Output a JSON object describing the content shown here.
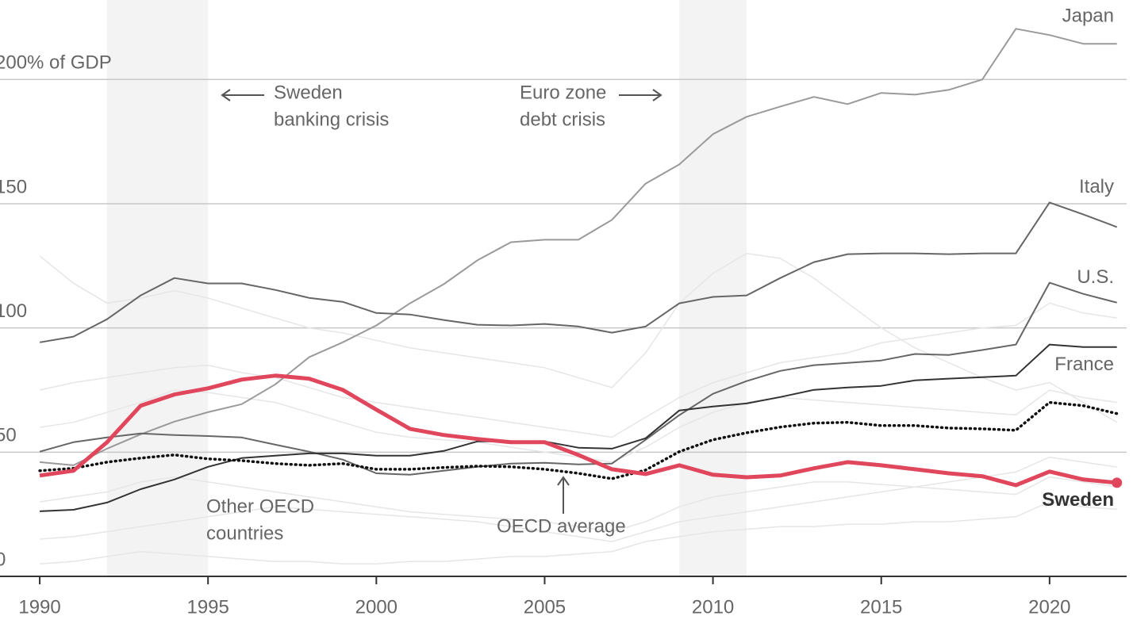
{
  "chart_data": {
    "type": "line",
    "x": [
      1990,
      1991,
      1992,
      1993,
      1994,
      1995,
      1996,
      1997,
      1998,
      1999,
      2000,
      2001,
      2002,
      2003,
      2004,
      2005,
      2006,
      2007,
      2008,
      2009,
      2010,
      2011,
      2012,
      2013,
      2014,
      2015,
      2016,
      2017,
      2018,
      2019,
      2020,
      2021,
      2022
    ],
    "xlim": [
      1988.82,
      2022.29
    ],
    "xticks": [
      1990,
      1995,
      2000,
      2005,
      2010,
      2015,
      2020
    ],
    "ylim": [
      0,
      232
    ],
    "yticks": [
      0,
      50,
      100,
      150,
      {
        "value": 200,
        "label": "200% of GDP"
      }
    ],
    "grid": true,
    "shaded_periods": [
      [
        1992,
        1995
      ],
      [
        2009,
        2011
      ]
    ],
    "annotations": [
      {
        "lines": [
          "Sweden",
          "banking crisis"
        ]
      },
      {
        "lines": [
          "Euro zone",
          "debt crisis"
        ]
      },
      {
        "lines": [
          "Other OECD",
          "countries"
        ]
      }
    ],
    "background_series": [
      {
        "color": "#e6e6e6",
        "values": [
          129,
          118,
          110,
          112,
          115,
          112,
          108,
          104,
          100,
          98,
          95,
          92,
          90,
          88,
          86,
          84,
          80,
          76,
          90,
          110,
          122,
          130,
          128,
          120,
          110,
          100,
          92,
          86,
          80,
          75,
          78,
          70,
          62
        ]
      },
      {
        "color": "#e6e6e6",
        "values": [
          75,
          78,
          80,
          82,
          84,
          85,
          82,
          80,
          76,
          72,
          70,
          68,
          66,
          64,
          62,
          60,
          58,
          56,
          64,
          72,
          78,
          82,
          86,
          88,
          90,
          94,
          96,
          98,
          100,
          101,
          110,
          106,
          104
        ]
      },
      {
        "color": "#e6e6e6",
        "values": [
          30,
          32,
          34,
          38,
          40,
          38,
          36,
          34,
          32,
          30,
          28,
          26,
          25,
          24,
          23,
          22,
          20,
          18,
          22,
          28,
          32,
          34,
          36,
          38,
          38,
          37,
          36,
          35,
          34,
          33,
          40,
          38,
          36
        ]
      },
      {
        "color": "#e6e6e6",
        "values": [
          15,
          16,
          18,
          20,
          22,
          24,
          26,
          28,
          27,
          26,
          25,
          24,
          23,
          22,
          20,
          18,
          16,
          14,
          18,
          22,
          24,
          26,
          28,
          30,
          32,
          34,
          36,
          38,
          40,
          42,
          48,
          46,
          44
        ]
      },
      {
        "color": "#e6e6e6",
        "values": [
          60,
          62,
          66,
          70,
          75,
          74,
          72,
          70,
          66,
          62,
          58,
          56,
          55,
          54,
          52,
          50,
          48,
          46,
          52,
          60,
          66,
          70,
          72,
          71,
          70,
          69,
          68,
          67,
          66,
          65,
          75,
          72,
          70
        ]
      },
      {
        "color": "#e6e6e6",
        "values": [
          5,
          6,
          8,
          10,
          9,
          8,
          7,
          6,
          6,
          5,
          5,
          6,
          6,
          7,
          8,
          8,
          9,
          10,
          14,
          16,
          18,
          19,
          20,
          20,
          21,
          21,
          22,
          22,
          23,
          24,
          30,
          28,
          27
        ]
      }
    ],
    "series": [
      {
        "name": "Japan",
        "color": "#9a9a9a",
        "values": [
          46,
          44.7,
          51.4,
          57.2,
          62.3,
          66.1,
          69.3,
          77.3,
          88.2,
          94.2,
          101,
          109.9,
          117.6,
          127.2,
          134.5,
          135.5,
          135.5,
          143.5,
          158.1,
          165.8,
          178,
          185,
          189.1,
          193,
          190.1,
          194.6,
          193.9,
          195.8,
          200,
          220.4,
          217.9,
          214.4,
          214.4
        ]
      },
      {
        "name": "Italy",
        "color": "#666666",
        "values": [
          94.2,
          96.5,
          103.5,
          113.1,
          120.1,
          117.9,
          117.9,
          115.3,
          112.1,
          110.5,
          106,
          105.4,
          103.2,
          101.3,
          101,
          101.6,
          100.6,
          98.1,
          100.6,
          109.9,
          112.5,
          113.1,
          120.1,
          126.5,
          129.7,
          130,
          130,
          129.7,
          130,
          130,
          150.5,
          145.7,
          140.6
        ]
      },
      {
        "name": "U.S.",
        "color": "#666666",
        "values": [
          50.2,
          54,
          55.9,
          57.5,
          56.9,
          56.5,
          55.9,
          53,
          50.2,
          47,
          41.5,
          40.9,
          42.5,
          44.1,
          45.4,
          45.7,
          45.1,
          45.4,
          55,
          64.9,
          73.5,
          78.6,
          82.7,
          85,
          85.9,
          86.9,
          89.5,
          89.1,
          91.1,
          93.3,
          118.2,
          113.7,
          110.2
        ]
      },
      {
        "name": "France",
        "color": "#333333",
        "values": [
          26.2,
          26.8,
          29.7,
          35.1,
          39,
          44.1,
          47.6,
          48.6,
          49.5,
          49.5,
          48.6,
          48.6,
          50.5,
          54.3,
          54.3,
          54.3,
          51.8,
          51.4,
          55.6,
          66.8,
          68.4,
          69.6,
          72.2,
          75.1,
          76,
          76.7,
          78.9,
          79.6,
          80.2,
          80.8,
          93.3,
          92.3,
          92.3
        ]
      },
      {
        "name": "OECD average",
        "color": "#111111",
        "style": "dotted",
        "values": [
          42.5,
          43.5,
          46,
          47.6,
          48.9,
          47.3,
          46.6,
          45.4,
          44.7,
          45.4,
          43.1,
          43.1,
          43.8,
          44.4,
          44.1,
          43.1,
          41.5,
          39.3,
          42.8,
          50.2,
          55,
          57.8,
          60.1,
          61.7,
          62,
          60.7,
          60.7,
          59.7,
          59.4,
          58.8,
          70,
          68.7,
          65.5
        ]
      },
      {
        "name": "Sweden",
        "color": "#e0475c",
        "highlight": true,
        "values": [
          40.6,
          42.5,
          54,
          68.7,
          73.2,
          75.7,
          79.2,
          80.8,
          79.6,
          75.1,
          67.1,
          59.4,
          56.9,
          55.3,
          54,
          54,
          48.9,
          43.1,
          41.2,
          44.7,
          40.9,
          39.9,
          40.6,
          43.5,
          46,
          44.7,
          43.1,
          41.5,
          40.3,
          36.7,
          42.2,
          39,
          37.7
        ]
      }
    ]
  }
}
